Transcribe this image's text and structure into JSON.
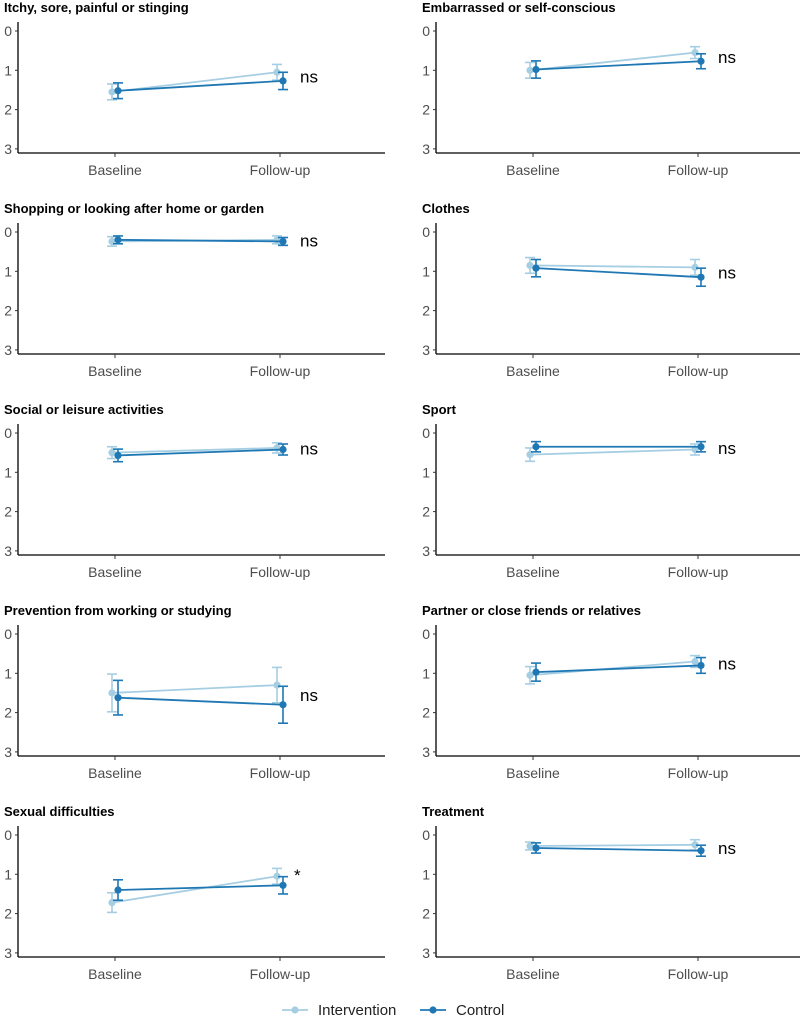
{
  "colors": {
    "intervention": "#a6cee3",
    "control": "#1f78b4"
  },
  "chart_data": {
    "type": "line",
    "x_categories": [
      "Baseline",
      "Follow-up"
    ],
    "y_ticks": [
      "0",
      "1",
      "2",
      "3"
    ],
    "ylim": [
      0,
      3
    ],
    "y_reversed": true,
    "legend": {
      "position": "bottom",
      "entries": [
        "Intervention",
        "Control"
      ]
    },
    "panels": [
      {
        "title": "Itchy, sore, painful or stinging",
        "significance": "ns",
        "series": [
          {
            "name": "Intervention",
            "values": [
              1.55,
              1.05
            ],
            "ci_low": [
              1.35,
              0.85
            ],
            "ci_high": [
              1.75,
              1.25
            ]
          },
          {
            "name": "Control",
            "values": [
              1.52,
              1.27
            ],
            "ci_low": [
              1.32,
              1.05
            ],
            "ci_high": [
              1.72,
              1.49
            ]
          }
        ]
      },
      {
        "title": "Embarrassed or self-conscious",
        "significance": "ns",
        "series": [
          {
            "name": "Intervention",
            "values": [
              1.0,
              0.55
            ],
            "ci_low": [
              0.8,
              0.4
            ],
            "ci_high": [
              1.2,
              0.7
            ]
          },
          {
            "name": "Control",
            "values": [
              0.98,
              0.77
            ],
            "ci_low": [
              0.76,
              0.58
            ],
            "ci_high": [
              1.2,
              0.96
            ]
          }
        ]
      },
      {
        "title": "Shopping or looking after home or garden",
        "significance": "ns",
        "series": [
          {
            "name": "Intervention",
            "values": [
              0.24,
              0.2
            ],
            "ci_low": [
              0.12,
              0.1
            ],
            "ci_high": [
              0.36,
              0.3
            ]
          },
          {
            "name": "Control",
            "values": [
              0.2,
              0.24
            ],
            "ci_low": [
              0.1,
              0.14
            ],
            "ci_high": [
              0.3,
              0.34
            ]
          }
        ]
      },
      {
        "title": "Clothes",
        "significance": "ns",
        "series": [
          {
            "name": "Intervention",
            "values": [
              0.85,
              0.9
            ],
            "ci_low": [
              0.65,
              0.7
            ],
            "ci_high": [
              1.05,
              1.1
            ]
          },
          {
            "name": "Control",
            "values": [
              0.92,
              1.15
            ],
            "ci_low": [
              0.7,
              0.92
            ],
            "ci_high": [
              1.14,
              1.38
            ]
          }
        ]
      },
      {
        "title": "Social or leisure activities",
        "significance": "ns",
        "series": [
          {
            "name": "Intervention",
            "values": [
              0.5,
              0.38
            ],
            "ci_low": [
              0.35,
              0.25
            ],
            "ci_high": [
              0.65,
              0.51
            ]
          },
          {
            "name": "Control",
            "values": [
              0.57,
              0.42
            ],
            "ci_low": [
              0.41,
              0.28
            ],
            "ci_high": [
              0.73,
              0.56
            ]
          }
        ]
      },
      {
        "title": "Sport",
        "significance": "ns",
        "series": [
          {
            "name": "Intervention",
            "values": [
              0.55,
              0.42
            ],
            "ci_low": [
              0.38,
              0.28
            ],
            "ci_high": [
              0.72,
              0.56
            ]
          },
          {
            "name": "Control",
            "values": [
              0.35,
              0.35
            ],
            "ci_low": [
              0.22,
              0.22
            ],
            "ci_high": [
              0.48,
              0.48
            ]
          }
        ]
      },
      {
        "title": "Prevention from working or studying",
        "significance": "ns",
        "series": [
          {
            "name": "Intervention",
            "values": [
              1.5,
              1.3
            ],
            "ci_low": [
              1.02,
              0.85
            ],
            "ci_high": [
              1.98,
              1.75
            ]
          },
          {
            "name": "Control",
            "values": [
              1.62,
              1.8
            ],
            "ci_low": [
              1.18,
              1.33
            ],
            "ci_high": [
              2.06,
              2.27
            ]
          }
        ]
      },
      {
        "title": "Partner or close friends or relatives",
        "significance": "ns",
        "series": [
          {
            "name": "Intervention",
            "values": [
              1.05,
              0.7
            ],
            "ci_low": [
              0.83,
              0.55
            ],
            "ci_high": [
              1.27,
              0.85
            ]
          },
          {
            "name": "Control",
            "values": [
              0.97,
              0.8
            ],
            "ci_low": [
              0.74,
              0.6
            ],
            "ci_high": [
              1.2,
              1.0
            ]
          }
        ]
      },
      {
        "title": "Sexual difficulties",
        "significance": "*",
        "series": [
          {
            "name": "Intervention",
            "values": [
              1.72,
              1.05
            ],
            "ci_low": [
              1.47,
              0.85
            ],
            "ci_high": [
              1.97,
              1.25
            ]
          },
          {
            "name": "Control",
            "values": [
              1.4,
              1.28
            ],
            "ci_low": [
              1.14,
              1.06
            ],
            "ci_high": [
              1.66,
              1.5
            ]
          }
        ]
      },
      {
        "title": "Treatment",
        "significance": "ns",
        "series": [
          {
            "name": "Intervention",
            "values": [
              0.28,
              0.25
            ],
            "ci_low": [
              0.18,
              0.12
            ],
            "ci_high": [
              0.38,
              0.38
            ]
          },
          {
            "name": "Control",
            "values": [
              0.33,
              0.4
            ],
            "ci_low": [
              0.2,
              0.26
            ],
            "ci_high": [
              0.46,
              0.54
            ]
          }
        ]
      }
    ]
  }
}
